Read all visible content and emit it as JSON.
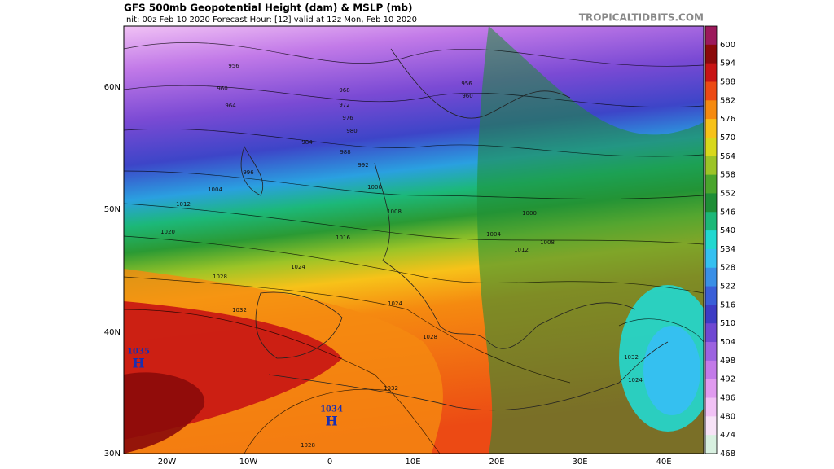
{
  "header": {
    "title": "GFS 500mb Geopotential Height (dam) & MSLP (mb)",
    "subtitle": "Init: 00z Feb 10 2020   Forecast Hour: [12]   valid at 12z Mon, Feb 10 2020",
    "site": "TROPICALTIDBITS.COM"
  },
  "map": {
    "lat_labels": [
      "60N",
      "50N",
      "40N",
      "30N"
    ],
    "lon_labels": [
      "20W",
      "10W",
      "0",
      "10E",
      "20E",
      "30E",
      "40E"
    ],
    "isobar_labels": [
      "956",
      "960",
      "964",
      "968",
      "972",
      "976",
      "980",
      "984",
      "988",
      "992",
      "996",
      "1000",
      "1004",
      "1008",
      "1012",
      "1016",
      "1020",
      "1024",
      "1028",
      "1032",
      "956",
      "960",
      "1000",
      "1004",
      "1008",
      "1012",
      "1024",
      "1028",
      "1032",
      "1032",
      "1028",
      "1024"
    ],
    "highs": [
      {
        "pressure": "1035",
        "symbol": "H"
      },
      {
        "pressure": "1034",
        "symbol": "H"
      }
    ]
  },
  "colorbar": {
    "levels": [
      600,
      594,
      588,
      582,
      576,
      570,
      564,
      558,
      552,
      546,
      540,
      534,
      528,
      522,
      516,
      510,
      504,
      498,
      492,
      486,
      480,
      474,
      468
    ],
    "colors": [
      "#9c1a5c",
      "#8b0a0a",
      "#c81414",
      "#ec4a14",
      "#f58a10",
      "#f7c219",
      "#d8d81c",
      "#9cc427",
      "#4aa52c",
      "#1e8e36",
      "#1cb878",
      "#22d8d0",
      "#35c0f0",
      "#3a8fe6",
      "#3a5fd8",
      "#3d3cc4",
      "#6f48d2",
      "#9c63e0",
      "#c27ae8",
      "#e09bef",
      "#f1c2f5",
      "#f7e3f7",
      "#d8f0e0"
    ]
  }
}
